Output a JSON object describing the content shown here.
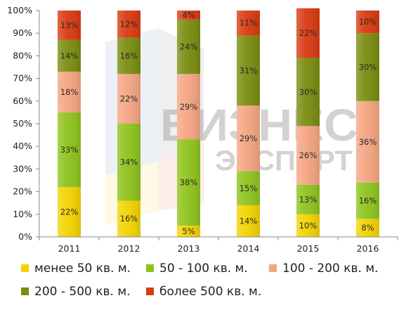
{
  "chart_data": {
    "type": "bar",
    "stacked": true,
    "categories": [
      "2011",
      "2012",
      "2013",
      "2014",
      "2015",
      "2016"
    ],
    "series": [
      {
        "name": "менее 50 кв. м.",
        "color": "#f3d300",
        "values": [
          22,
          16,
          5,
          14,
          10,
          8
        ],
        "labels": [
          "22%",
          "16%",
          "5%",
          "14%",
          "10%",
          "8%"
        ]
      },
      {
        "name": "50 - 100 кв. м.",
        "color": "#8ec31c",
        "values": [
          33,
          34,
          38,
          15,
          13,
          16
        ],
        "labels": [
          "33%",
          "34%",
          "38%",
          "15%",
          "13%",
          "16%"
        ]
      },
      {
        "name": "100 - 200 кв. м.",
        "color": "#f4a582",
        "values": [
          18,
          22,
          29,
          29,
          26,
          36
        ],
        "labels": [
          "18%",
          "22%",
          "29%",
          "29%",
          "26%",
          "36%"
        ]
      },
      {
        "name": "200 - 500 кв. м.",
        "color": "#7a8c10",
        "values": [
          14,
          16,
          24,
          31,
          30,
          30
        ],
        "labels": [
          "14%",
          "16%",
          "24%",
          "31%",
          "30%",
          "30%"
        ]
      },
      {
        "name": "более 500 кв. м.",
        "color": "#d83a12",
        "values": [
          13,
          12,
          4,
          11,
          22,
          10
        ],
        "labels": [
          "13%",
          "12%",
          "4%",
          "11%",
          "22%",
          "10%"
        ]
      }
    ],
    "y_ticks": [
      "0%",
      "10%",
      "20%",
      "30%",
      "40%",
      "50%",
      "60%",
      "70%",
      "80%",
      "90%",
      "100%"
    ],
    "ylim": [
      0,
      100
    ],
    "grid": false,
    "legend": "bottom"
  },
  "watermark": {
    "line1": "БИЗНЕС",
    "line2": "ЭКСПЕРТ"
  }
}
